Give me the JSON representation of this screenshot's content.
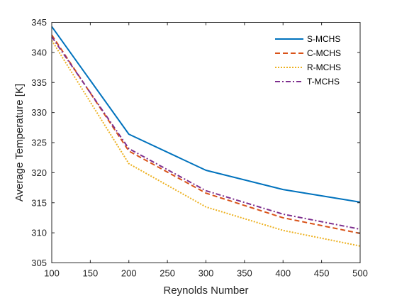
{
  "chart_data": {
    "type": "line",
    "title": "",
    "xlabel": "Reynolds Number",
    "ylabel": "Average Temperature [K]",
    "x": [
      100,
      200,
      300,
      400,
      500
    ],
    "xlim": [
      100,
      500
    ],
    "ylim": [
      305,
      345
    ],
    "xticks": [
      "100",
      "150",
      "200",
      "250",
      "300",
      "350",
      "400",
      "450",
      "500"
    ],
    "yticks": [
      "305",
      "310",
      "315",
      "320",
      "325",
      "330",
      "335",
      "340",
      "345"
    ],
    "grid": false,
    "legend_position": "top-right",
    "series": [
      {
        "name": "S-MCHS",
        "values": [
          344.3,
          326.4,
          320.4,
          317.2,
          315.1
        ],
        "color": "#0072BD",
        "dash": "solid"
      },
      {
        "name": "C-MCHS",
        "values": [
          342.9,
          323.6,
          316.6,
          312.5,
          309.9
        ],
        "color": "#D95319",
        "dash": "dashed"
      },
      {
        "name": "R-MCHS",
        "values": [
          342.0,
          321.5,
          314.3,
          310.4,
          307.8
        ],
        "color": "#EDB120",
        "dash": "dotted"
      },
      {
        "name": "T-MCHS",
        "values": [
          342.6,
          324.0,
          317.0,
          313.1,
          310.6
        ],
        "color": "#7E2F8E",
        "dash": "dashdot"
      }
    ]
  }
}
